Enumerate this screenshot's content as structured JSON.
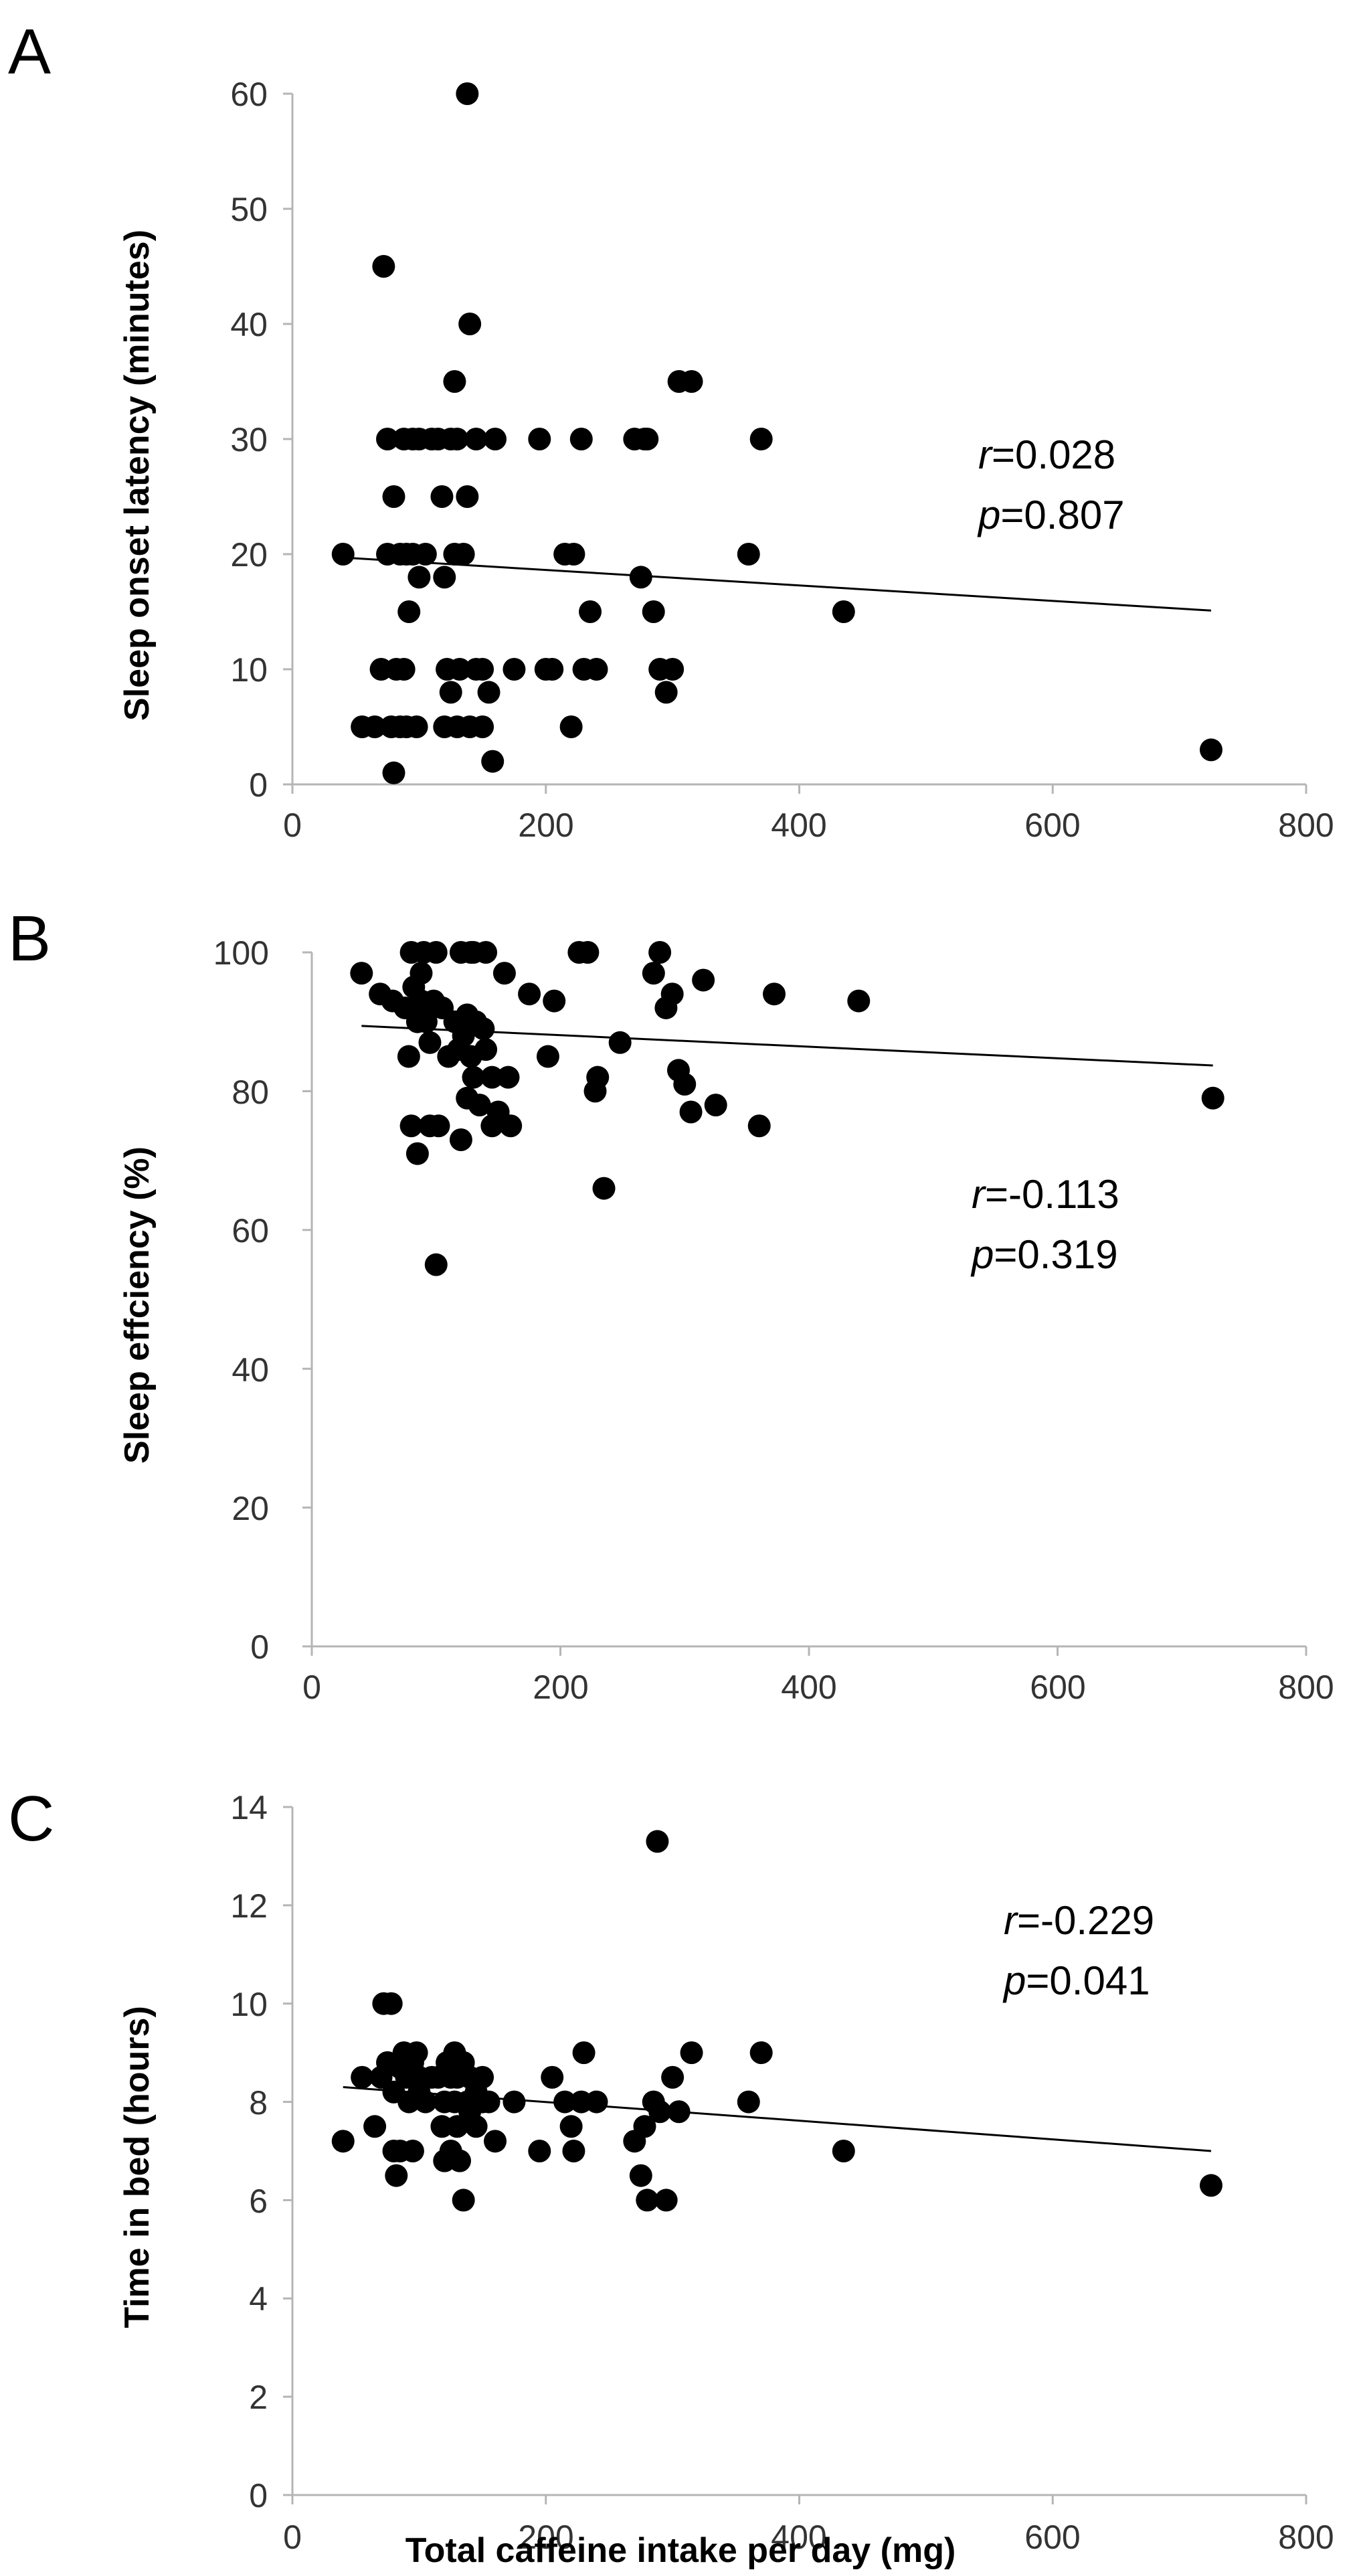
{
  "figure": {
    "xlabel": "Total caffeine intake per day (mg)"
  },
  "chart_data": [
    {
      "type": "scatter",
      "panel": "A",
      "title": "",
      "xlabel": "",
      "ylabel": "Sleep onset latency (minutes)",
      "xlim": [
        0,
        800
      ],
      "ylim": [
        0,
        60
      ],
      "xticks": [
        "0",
        "200",
        "400",
        "600",
        "800"
      ],
      "yticks": [
        "0",
        "10",
        "20",
        "30",
        "40",
        "50",
        "60"
      ],
      "stats": {
        "r_symbol": "r",
        "r_value": "=0.028",
        "p_symbol": "p",
        "p_value": "=0.807"
      },
      "trendline": {
        "x": [
          40,
          725
        ],
        "y": [
          19.7,
          15.1
        ]
      },
      "x": [
        40,
        55,
        65,
        70,
        72,
        75,
        75,
        78,
        80,
        80,
        82,
        85,
        85,
        88,
        88,
        90,
        90,
        92,
        95,
        95,
        98,
        100,
        100,
        105,
        110,
        115,
        118,
        120,
        120,
        122,
        125,
        125,
        128,
        128,
        130,
        130,
        132,
        135,
        138,
        138,
        140,
        140,
        145,
        145,
        150,
        150,
        155,
        158,
        160,
        175,
        195,
        200,
        205,
        215,
        220,
        222,
        228,
        230,
        235,
        240,
        270,
        275,
        278,
        280,
        285,
        290,
        295,
        300,
        305,
        315,
        360,
        370,
        435,
        725
      ],
      "y": [
        20,
        5,
        5,
        10,
        45,
        30,
        20,
        5,
        25,
        1,
        10,
        20,
        5,
        30,
        10,
        5,
        20,
        15,
        30,
        20,
        5,
        18,
        30,
        20,
        30,
        30,
        25,
        18,
        5,
        10,
        8,
        30,
        35,
        20,
        30,
        5,
        10,
        20,
        25,
        60,
        40,
        5,
        10,
        30,
        10,
        5,
        8,
        2,
        30,
        10,
        30,
        10,
        10,
        20,
        5,
        20,
        30,
        10,
        15,
        10,
        30,
        18,
        30,
        30,
        15,
        10,
        8,
        10,
        35,
        35,
        20,
        30,
        15,
        3
      ]
    },
    {
      "type": "scatter",
      "panel": "B",
      "title": "",
      "xlabel": "",
      "ylabel": "Sleep effciency (%)",
      "xlim": [
        0,
        800
      ],
      "ylim": [
        0,
        100
      ],
      "xticks": [
        "0",
        "200",
        "400",
        "600",
        "800"
      ],
      "yticks": [
        "0",
        "20",
        "40",
        "60",
        "80",
        "100"
      ],
      "stats": {
        "r_symbol": "r",
        "r_value": "=-0.113",
        "p_symbol": "p",
        "p_value": "=0.319"
      },
      "trendline": {
        "x": [
          40,
          725
        ],
        "y": [
          89.4,
          83.7
        ]
      },
      "x": [
        40,
        55,
        65,
        75,
        78,
        80,
        80,
        82,
        85,
        85,
        88,
        88,
        90,
        90,
        92,
        95,
        95,
        98,
        100,
        100,
        102,
        105,
        110,
        115,
        118,
        120,
        120,
        122,
        125,
        125,
        128,
        128,
        130,
        130,
        132,
        135,
        138,
        140,
        140,
        145,
        145,
        150,
        155,
        158,
        160,
        175,
        190,
        195,
        215,
        222,
        228,
        230,
        235,
        248,
        275,
        280,
        285,
        290,
        295,
        300,
        305,
        315,
        325,
        360,
        372,
        440,
        725
      ],
      "y": [
        97,
        94,
        93,
        92,
        85,
        75,
        100,
        95,
        90,
        71,
        97,
        93,
        100,
        92,
        90,
        87,
        75,
        93,
        100,
        55,
        75,
        92,
        85,
        90,
        86,
        100,
        73,
        88,
        91,
        79,
        100,
        85,
        100,
        82,
        90,
        78,
        89,
        100,
        86,
        82,
        75,
        77,
        97,
        82,
        75,
        94,
        85,
        93,
        100,
        100,
        80,
        82,
        66,
        87,
        97,
        100,
        92,
        94,
        83,
        81,
        77,
        96,
        78,
        75,
        94,
        93,
        79
      ]
    },
    {
      "type": "scatter",
      "panel": "C",
      "title": "",
      "xlabel": "Total caffeine intake per day (mg)",
      "ylabel": "Time in bed (hours)",
      "xlim": [
        0,
        800
      ],
      "ylim": [
        0,
        14
      ],
      "xticks": [
        "0",
        "200",
        "400",
        "600",
        "800"
      ],
      "yticks": [
        "0",
        "2",
        "4",
        "6",
        "8",
        "10",
        "12",
        "14"
      ],
      "stats": {
        "r_symbol": "r",
        "r_value": "=-0.229",
        "p_symbol": "p",
        "p_value": "=0.041"
      },
      "trendline": {
        "x": [
          40,
          725
        ],
        "y": [
          8.3,
          7.0
        ]
      },
      "x": [
        40,
        55,
        65,
        70,
        72,
        75,
        78,
        80,
        80,
        82,
        85,
        85,
        88,
        90,
        92,
        95,
        95,
        98,
        100,
        100,
        105,
        110,
        115,
        118,
        120,
        120,
        122,
        125,
        125,
        128,
        128,
        130,
        130,
        132,
        135,
        135,
        138,
        140,
        140,
        145,
        145,
        150,
        150,
        155,
        160,
        175,
        195,
        205,
        215,
        220,
        222,
        228,
        230,
        240,
        270,
        275,
        278,
        280,
        285,
        288,
        290,
        295,
        300,
        305,
        315,
        360,
        370,
        435,
        725
      ],
      "y": [
        7.2,
        8.5,
        7.5,
        8.5,
        10,
        8.8,
        10,
        7,
        8.2,
        6.5,
        8.7,
        7,
        9,
        8.5,
        8,
        8.8,
        7,
        9,
        8.2,
        8.5,
        8,
        8.5,
        8.5,
        7.5,
        8,
        6.8,
        8.8,
        7,
        8.5,
        8,
        9,
        7.5,
        8.5,
        6.8,
        8.8,
        6,
        8,
        8.5,
        7.8,
        8.2,
        7.5,
        8,
        8.5,
        8,
        7.2,
        8,
        7,
        8.5,
        8,
        7.5,
        7,
        8,
        9,
        8,
        7.2,
        6.5,
        7.5,
        6,
        8,
        13.3,
        7.8,
        6,
        8.5,
        7.8,
        9,
        8,
        9,
        7,
        6.3
      ]
    }
  ]
}
